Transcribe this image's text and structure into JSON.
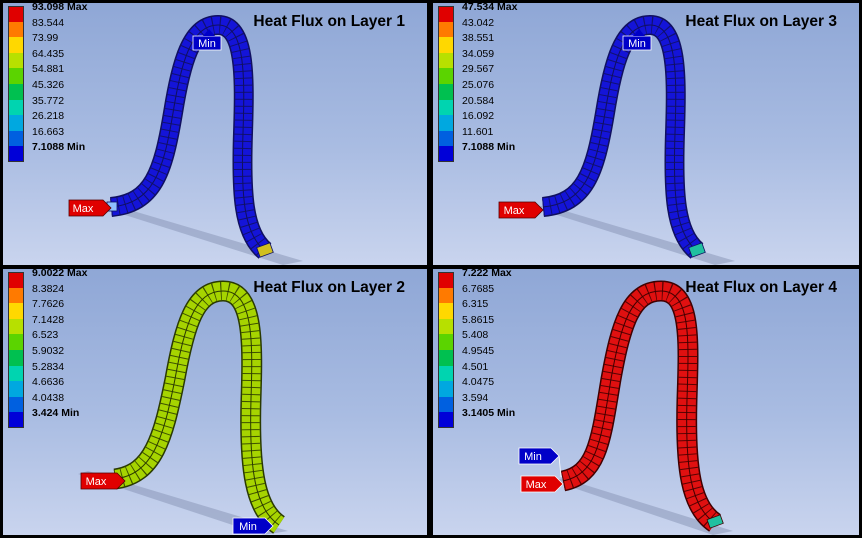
{
  "palette": [
    "#e00000",
    "#ff7a00",
    "#ffd800",
    "#b7e000",
    "#5bd400",
    "#00c050",
    "#00d4b0",
    "#00a8e0",
    "#0060e0",
    "#0000d8"
  ],
  "panels": [
    {
      "id": "layer1",
      "title": "Heat Flux on Layer 1",
      "legend": [
        "93.098 Max",
        "83.544",
        "73.99",
        "64.435",
        "54.881",
        "45.326",
        "35.772",
        "26.218",
        "16.663",
        "7.1088 Min"
      ],
      "max_label": "Max",
      "min_label": "Min",
      "body_color": "#1414d8"
    },
    {
      "id": "layer3",
      "title": "Heat Flux on Layer 3",
      "legend": [
        "47.534 Max",
        "43.042",
        "38.551",
        "34.059",
        "29.567",
        "25.076",
        "20.584",
        "16.092",
        "11.601",
        "7.1088 Min"
      ],
      "max_label": "Max",
      "min_label": "Min",
      "body_color": "#1414d8"
    },
    {
      "id": "layer2",
      "title": "Heat Flux on Layer 2",
      "legend": [
        "9.0022 Max",
        "8.3824",
        "7.7626",
        "7.1428",
        "6.523",
        "5.9032",
        "5.2834",
        "4.6636",
        "4.0438",
        "3.424 Min"
      ],
      "max_label": "Max",
      "min_label": "Min",
      "body_color": "#a6d400"
    },
    {
      "id": "layer4",
      "title": "Heat Flux on Layer 4",
      "legend": [
        "7.222 Max",
        "6.7685",
        "6.315",
        "5.8615",
        "5.408",
        "4.9545",
        "4.501",
        "4.0475",
        "3.594",
        "3.1405 Min"
      ],
      "max_label": "Max",
      "min_label": "Min",
      "body_color": "#e01010"
    }
  ]
}
